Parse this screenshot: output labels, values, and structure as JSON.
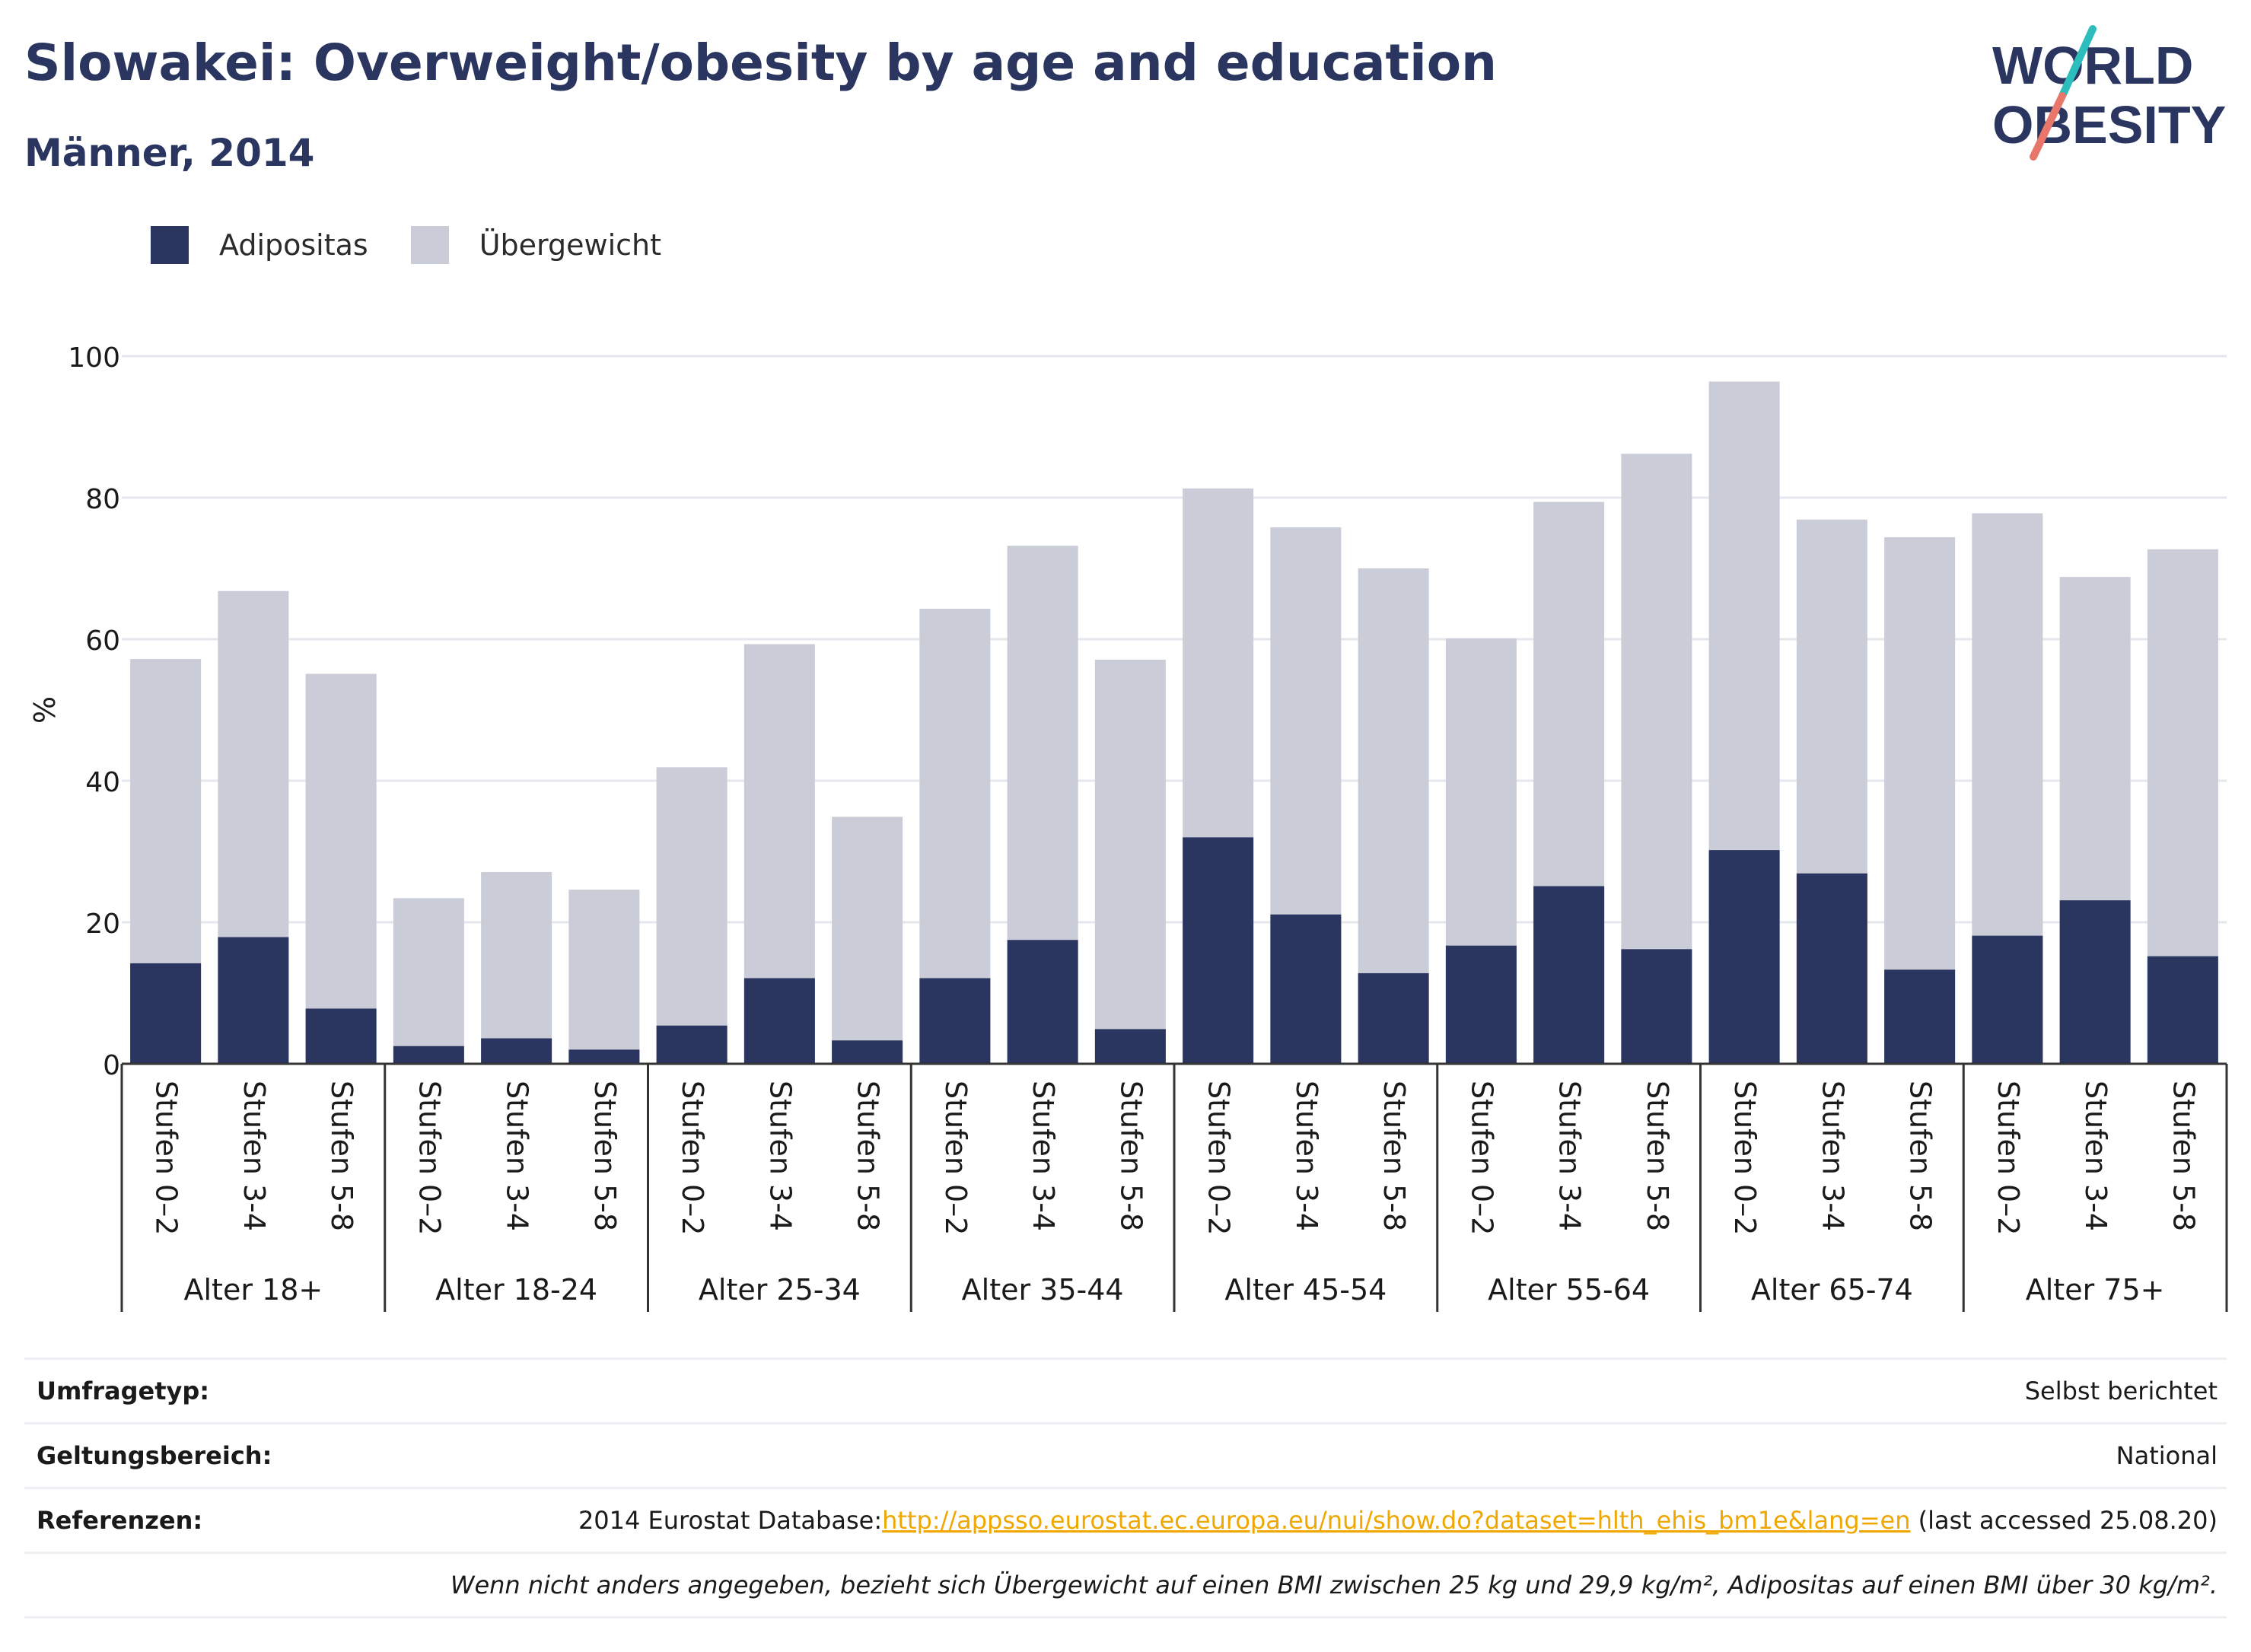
{
  "title": "Slowakei: Overweight/obesity by age and education",
  "subtitle": "Männer, 2014",
  "logo": {
    "line1": "WORLD",
    "line2": "OBESITY"
  },
  "legend": [
    {
      "name": "Adipositas",
      "color": "#2a3560"
    },
    {
      "name": "Übergewicht",
      "color": "#caccd8"
    }
  ],
  "chart_data": {
    "type": "bar",
    "stacked": true,
    "ylabel": "%",
    "ylim": [
      0,
      100
    ],
    "yticks": [
      0,
      20,
      40,
      60,
      80,
      100
    ],
    "grid": true,
    "legend_position": "top-left",
    "groups": [
      {
        "label": "Alter 18+",
        "categories": [
          "Stufen 0–2",
          "Stufen 3-4",
          "Stufen 5-8"
        ],
        "adipositas": [
          14.2,
          17.9,
          7.8
        ],
        "total": [
          57.2,
          66.8,
          55.1
        ]
      },
      {
        "label": "Alter 18-24",
        "categories": [
          "Stufen 0–2",
          "Stufen 3-4",
          "Stufen 5-8"
        ],
        "adipositas": [
          2.5,
          3.6,
          2.0
        ],
        "total": [
          23.4,
          27.1,
          24.6
        ]
      },
      {
        "label": "Alter 25-34",
        "categories": [
          "Stufen 0–2",
          "Stufen 3-4",
          "Stufen 5-8"
        ],
        "adipositas": [
          5.4,
          12.1,
          3.3
        ],
        "total": [
          41.9,
          59.3,
          34.9
        ]
      },
      {
        "label": "Alter 35-44",
        "categories": [
          "Stufen 0–2",
          "Stufen 3-4",
          "Stufen 5-8"
        ],
        "adipositas": [
          12.1,
          17.5,
          4.9
        ],
        "total": [
          64.3,
          73.2,
          57.1
        ]
      },
      {
        "label": "Alter 45-54",
        "categories": [
          "Stufen 0–2",
          "Stufen 3-4",
          "Stufen 5-8"
        ],
        "adipositas": [
          32.0,
          21.1,
          12.8
        ],
        "total": [
          81.3,
          75.8,
          70.0
        ]
      },
      {
        "label": "Alter 55-64",
        "categories": [
          "Stufen 0–2",
          "Stufen 3-4",
          "Stufen 5-8"
        ],
        "adipositas": [
          16.7,
          25.1,
          16.2
        ],
        "total": [
          60.1,
          79.4,
          86.2
        ]
      },
      {
        "label": "Alter 65-74",
        "categories": [
          "Stufen 0–2",
          "Stufen 3-4",
          "Stufen 5-8"
        ],
        "adipositas": [
          30.2,
          26.9,
          13.3
        ],
        "total": [
          96.4,
          76.9,
          74.4
        ]
      },
      {
        "label": "Alter 75+",
        "categories": [
          "Stufen 0–2",
          "Stufen 3-4",
          "Stufen 5-8"
        ],
        "adipositas": [
          18.1,
          23.1,
          15.2
        ],
        "total": [
          77.8,
          68.8,
          72.7
        ]
      }
    ]
  },
  "meta": {
    "survey_label": "Umfragetyp:",
    "survey_value": "Selbst berichtet",
    "scope_label": "Geltungsbereich:",
    "scope_value": "National",
    "ref_label": "Referenzen:",
    "ref_prefix": "2014 Eurostat Database:",
    "ref_link": "http://appsso.eurostat.ec.europa.eu/nui/show.do?dataset=hlth_ehis_bm1e&lang=en",
    "ref_suffix": " (last accessed 25.08.20)",
    "note": "Wenn nicht anders angegeben, bezieht sich Übergewicht auf einen BMI zwischen 25 kg und 29,9 kg/m², Adipositas auf einen BMI über 30 kg/m²."
  }
}
